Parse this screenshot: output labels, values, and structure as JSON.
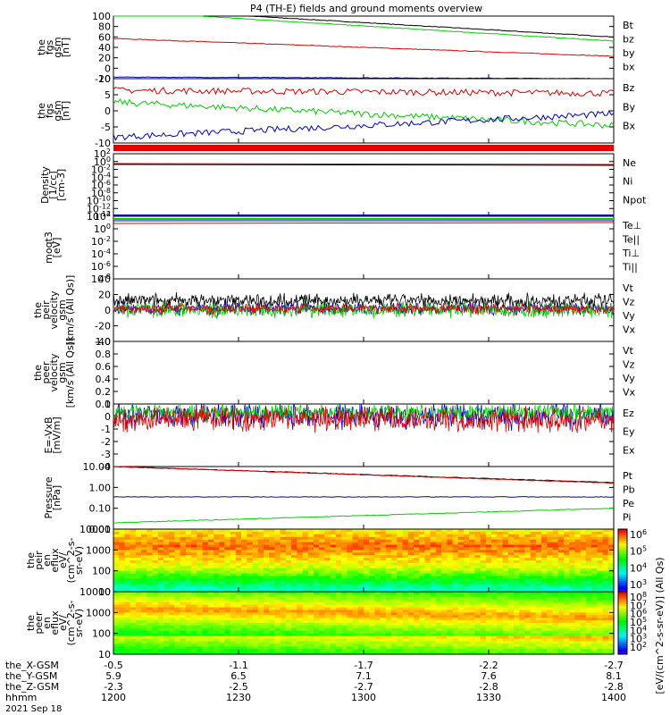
{
  "title": "P4 (TH-E) fields and ground moments overview",
  "date": "2021 Sep 18",
  "colors": {
    "black": "#000000",
    "red": "#e00000",
    "green": "#00d000",
    "blue": "#0000c8"
  },
  "chart_data": [
    {
      "panel": "fgs_gsm_total",
      "type": "line",
      "ylabel": [
        "the",
        "fgs",
        "gsm",
        "[nT]"
      ],
      "yticks": [
        "100",
        "80",
        "60",
        "40",
        "20",
        "0",
        "-20"
      ],
      "ylim": [
        -20,
        100
      ],
      "series": [
        {
          "name": "Bt",
          "color": "black",
          "start": 115,
          "end": 60
        },
        {
          "name": "bz",
          "color": "red",
          "start": 57,
          "end": 23
        },
        {
          "name": "by",
          "color": "green",
          "start": 110,
          "end": 52
        },
        {
          "name": "bx",
          "color": "blue",
          "start": -17,
          "end": -20
        }
      ]
    },
    {
      "panel": "fgs_gsm_comp",
      "type": "line",
      "ylabel": [
        "the",
        "fgs",
        "gsm",
        "[nT]"
      ],
      "yticks": [
        "10",
        "5",
        "0",
        "-5",
        "-10"
      ],
      "ylim": [
        -12,
        10
      ],
      "series": [
        {
          "name": "Bz",
          "color": "red",
          "start": 6,
          "end": 5
        },
        {
          "name": "By",
          "color": "green",
          "start": 2,
          "end": -6
        },
        {
          "name": "Bx",
          "color": "blue",
          "start": -10,
          "end": -2
        }
      ]
    },
    {
      "panel": "density",
      "type": "line",
      "ylabel": [
        "Density",
        "[1/cc]",
        "[cm-3]"
      ],
      "yticks": [
        "10^2",
        "10^0",
        "10^-2",
        "10^-4",
        "10^-6",
        "10^-8",
        "10^-10",
        "10^-12",
        "10^-14"
      ],
      "legend": [
        "Ne",
        "Ni",
        "Npot"
      ]
    },
    {
      "panel": "temperature",
      "type": "line",
      "ylabel": [
        "moqt3",
        "[eV]"
      ],
      "yticks": [
        "10^2",
        "10^0",
        "10^-2",
        "10^-4",
        "10^-6",
        "10^-8"
      ],
      "legend": [
        "Te⊥",
        "Te||",
        "Ti⊥",
        "Ti||"
      ]
    },
    {
      "panel": "peir_velocity",
      "type": "line",
      "ylabel": [
        "the",
        "peir",
        "velocity",
        "gsm",
        "[km/s (All Qs)]"
      ],
      "yticks": [
        "40",
        "20",
        "0",
        "-20",
        "-40"
      ],
      "ylim": [
        -40,
        40
      ],
      "series": [
        {
          "name": "Vt",
          "color": "black"
        },
        {
          "name": "Vz",
          "color": "red"
        },
        {
          "name": "Vy",
          "color": "green"
        },
        {
          "name": "Vx",
          "color": "blue"
        }
      ]
    },
    {
      "panel": "peer_velocity",
      "type": "line",
      "ylabel": [
        "the",
        "peer",
        "velocity",
        "gsm",
        "[km/s (All Qs)]"
      ],
      "yticks": [
        "1.0",
        "0.8",
        "0.6",
        "0.4",
        "0.2",
        "0.0"
      ],
      "ylim": [
        0,
        1
      ],
      "series": [
        {
          "name": "Vt",
          "color": "black"
        },
        {
          "name": "Vz",
          "color": "red"
        },
        {
          "name": "Vy",
          "color": "green"
        },
        {
          "name": "Vx",
          "color": "blue"
        }
      ]
    },
    {
      "panel": "e_field",
      "type": "line",
      "ylabel": [
        "E=-VxB",
        "[mV/m]"
      ],
      "yticks": [
        "1",
        "0",
        "-1",
        "-2",
        "-3",
        "-4"
      ],
      "ylim": [
        -4,
        1
      ],
      "series": [
        {
          "name": "Ez",
          "color": "red"
        },
        {
          "name": "Ey",
          "color": "green"
        },
        {
          "name": "Ex",
          "color": "blue"
        }
      ]
    },
    {
      "panel": "pressure",
      "type": "line",
      "ylabel": [
        "Pressure",
        "[nPa]"
      ],
      "yticks": [
        "10.00",
        "1.00",
        "0.10",
        "0.01"
      ],
      "ylim_log": [
        0.01,
        10
      ],
      "series": [
        {
          "name": "Pt",
          "color": "black",
          "start": 10,
          "end": 1.7
        },
        {
          "name": "Pb",
          "color": "red",
          "start": 10,
          "end": 1.6
        },
        {
          "name": "Pe",
          "color": "green",
          "start": 0.02,
          "end": 0.1
        },
        {
          "name": "Pi",
          "color": "blue",
          "start": 0.35,
          "end": 0.35
        }
      ]
    },
    {
      "panel": "peir_spectrogram",
      "type": "heatmap",
      "ylabel": [
        "the",
        "peir",
        "en",
        "eflux",
        "eV/",
        "(cm^2-s-",
        "sr-eV)"
      ],
      "yticks": [
        "10000",
        "1000",
        "100",
        "10"
      ]
    },
    {
      "panel": "peer_spectrogram",
      "type": "heatmap",
      "ylabel": [
        "the",
        "peer",
        "en",
        "eflux",
        "eV/",
        "(cm^2-s-",
        "sr-eV)"
      ],
      "yticks": [
        "10000",
        "1000",
        "100",
        "10"
      ]
    }
  ],
  "colorbar": {
    "label": "[eV/(cm^2-s-sr-eV)] (All Qs)",
    "ticks_top": [
      "10^6",
      "10^5",
      "10^4",
      "10^3"
    ],
    "ticks_bottom": [
      "10^8",
      "10^7",
      "10^6",
      "10^5",
      "10^4",
      "10^3",
      "10^2"
    ]
  },
  "xaxis": {
    "row_labels": [
      "the_X-GSM",
      "the_Y-GSM",
      "the_Z-GSM",
      "hhmm"
    ],
    "columns": [
      [
        "-0.5",
        "5.9",
        "-2.3",
        "1200"
      ],
      [
        "-1.1",
        "6.5",
        "-2.5",
        "1230"
      ],
      [
        "-1.7",
        "7.1",
        "-2.7",
        "1300"
      ],
      [
        "-2.2",
        "7.6",
        "-2.8",
        "1330"
      ],
      [
        "-2.7",
        "8.1",
        "-2.8",
        "1400"
      ]
    ]
  }
}
